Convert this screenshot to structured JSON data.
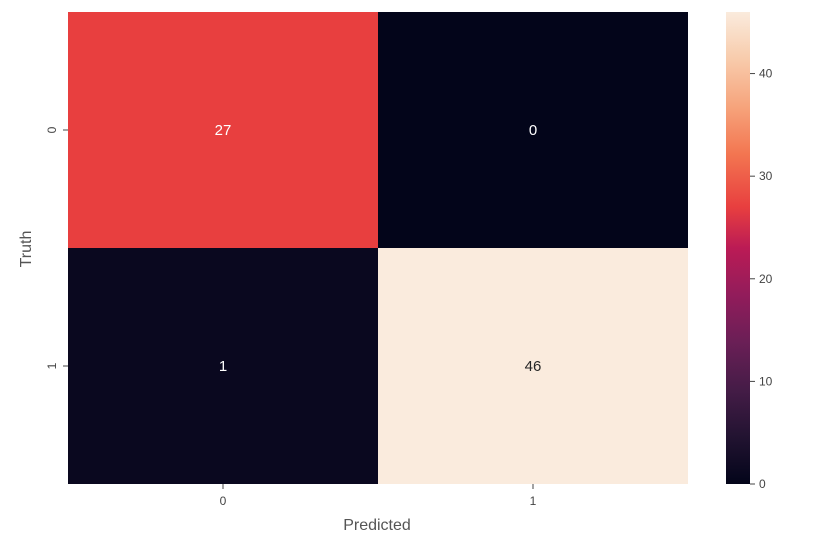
{
  "chart_data": {
    "type": "heatmap",
    "title": "",
    "xlabel": "Predicted",
    "ylabel": "Truth",
    "x_categories": [
      "0",
      "1"
    ],
    "y_categories": [
      "0",
      "1"
    ],
    "values": [
      [
        27,
        0
      ],
      [
        1,
        46
      ]
    ],
    "value_labels": [
      [
        "27",
        "0"
      ],
      [
        "1",
        "46"
      ]
    ],
    "colorbar": {
      "min": 0,
      "max": 46,
      "ticks": [
        0,
        10,
        20,
        30,
        40
      ],
      "tick_labels": [
        "0",
        "10",
        "20",
        "30",
        "40"
      ],
      "colormap": "rocket"
    },
    "colormap_stops": [
      {
        "t": 0.0,
        "color": "#03051a"
      },
      {
        "t": 0.1,
        "color": "#221331"
      },
      {
        "t": 0.2,
        "color": "#451c47"
      },
      {
        "t": 0.3,
        "color": "#6a1f56"
      },
      {
        "t": 0.4,
        "color": "#921c5b"
      },
      {
        "t": 0.5,
        "color": "#bb1b55"
      },
      {
        "t": 0.587,
        "color": "#e83f3f"
      },
      {
        "t": 0.7,
        "color": "#f37651"
      },
      {
        "t": 0.8,
        "color": "#f6a47c"
      },
      {
        "t": 0.9,
        "color": "#f8cbab"
      },
      {
        "t": 1.0,
        "color": "#faebdd"
      }
    ],
    "grid": false,
    "legend": "colorbar-right"
  }
}
